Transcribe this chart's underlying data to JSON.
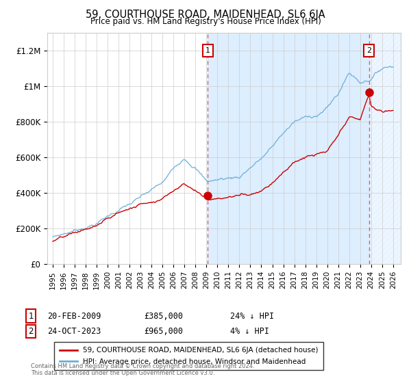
{
  "title": "59, COURTHOUSE ROAD, MAIDENHEAD, SL6 6JA",
  "subtitle": "Price paid vs. HM Land Registry's House Price Index (HPI)",
  "ylabel_ticks": [
    "£0",
    "£200K",
    "£400K",
    "£600K",
    "£800K",
    "£1M",
    "£1.2M"
  ],
  "ytick_values": [
    0,
    200000,
    400000,
    600000,
    800000,
    1000000,
    1200000
  ],
  "ylim": [
    0,
    1300000
  ],
  "xlim_start": 1994.5,
  "xlim_end": 2026.7,
  "hpi_color": "#6baed6",
  "hpi_fill_color": "#ddeeff",
  "price_color": "#cc0000",
  "vline_color": "#cc6666",
  "marker1_date": 2009.12,
  "marker2_date": 2023.81,
  "marker1_price": 385000,
  "marker2_price": 965000,
  "legend_label1": "59, COURTHOUSE ROAD, MAIDENHEAD, SL6 6JA (detached house)",
  "legend_label2": "HPI: Average price, detached house, Windsor and Maidenhead",
  "footnote": "Contains HM Land Registry data © Crown copyright and database right 2024.\nThis data is licensed under the Open Government Licence v3.0.",
  "background_color": "#ffffff",
  "grid_color": "#cccccc",
  "chart_bg_left": "#ffffff",
  "chart_bg_middle": "#e8f0f8",
  "hatch_color": "#d0d8e8"
}
